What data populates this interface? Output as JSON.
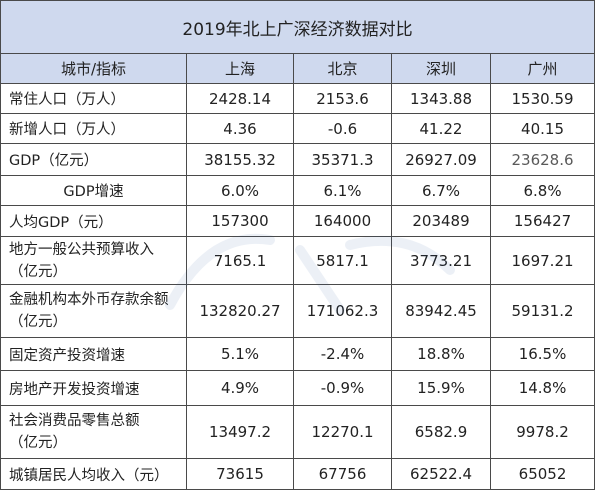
{
  "title": "2019年北上广深经济数据对比",
  "header": [
    "城市/指标",
    "上海",
    "北京",
    "深圳",
    "广州"
  ],
  "rows": [
    {
      "label": "常住人口（万人）",
      "values": [
        "2428.14",
        "2153.6",
        "1343.88",
        "1530.59"
      ]
    },
    {
      "label": "新增人口（万人）",
      "values": [
        "4.36",
        "-0.6",
        "41.22",
        "40.15"
      ]
    },
    {
      "label": "GDP（亿元）",
      "values": [
        "38155.32",
        "35371.3",
        "26927.09",
        "23628.6"
      ]
    },
    {
      "label": "GDP增速",
      "values": [
        "6.0%",
        "6.1%",
        "6.7%",
        "6.8%"
      ]
    },
    {
      "label": "人均GDP（元）",
      "values": [
        "157300",
        "164000",
        "203489",
        "156427"
      ]
    },
    {
      "label_line1": "地方一般公共预算收入",
      "label_line2": "（亿元）",
      "values": [
        "7165.1",
        "5817.1",
        "3773.21",
        "1697.21"
      ]
    },
    {
      "label_line1": "金融机构本外币存款余额",
      "label_line2": "（亿元）",
      "values": [
        "132820.27",
        "171062.3",
        "83942.45",
        "59131.2"
      ]
    },
    {
      "label": "固定资产投资增速",
      "values": [
        "5.1%",
        "-2.4%",
        "18.8%",
        "16.5%"
      ]
    },
    {
      "label": "房地产开发投资增速",
      "values": [
        "4.9%",
        "-0.9%",
        "15.9%",
        "14.8%"
      ]
    },
    {
      "label_line1": "社会消费品零售总额",
      "label_line2": "（亿元）",
      "values": [
        "13497.2",
        "12270.1",
        "6582.9",
        "9978.2"
      ]
    },
    {
      "label": "城镇居民人均收入（元）",
      "values": [
        "73615",
        "67756",
        "62522.4",
        "65052"
      ]
    }
  ],
  "colors": {
    "header_bg": "#cfd9ee",
    "border": "#4a4a4a"
  }
}
